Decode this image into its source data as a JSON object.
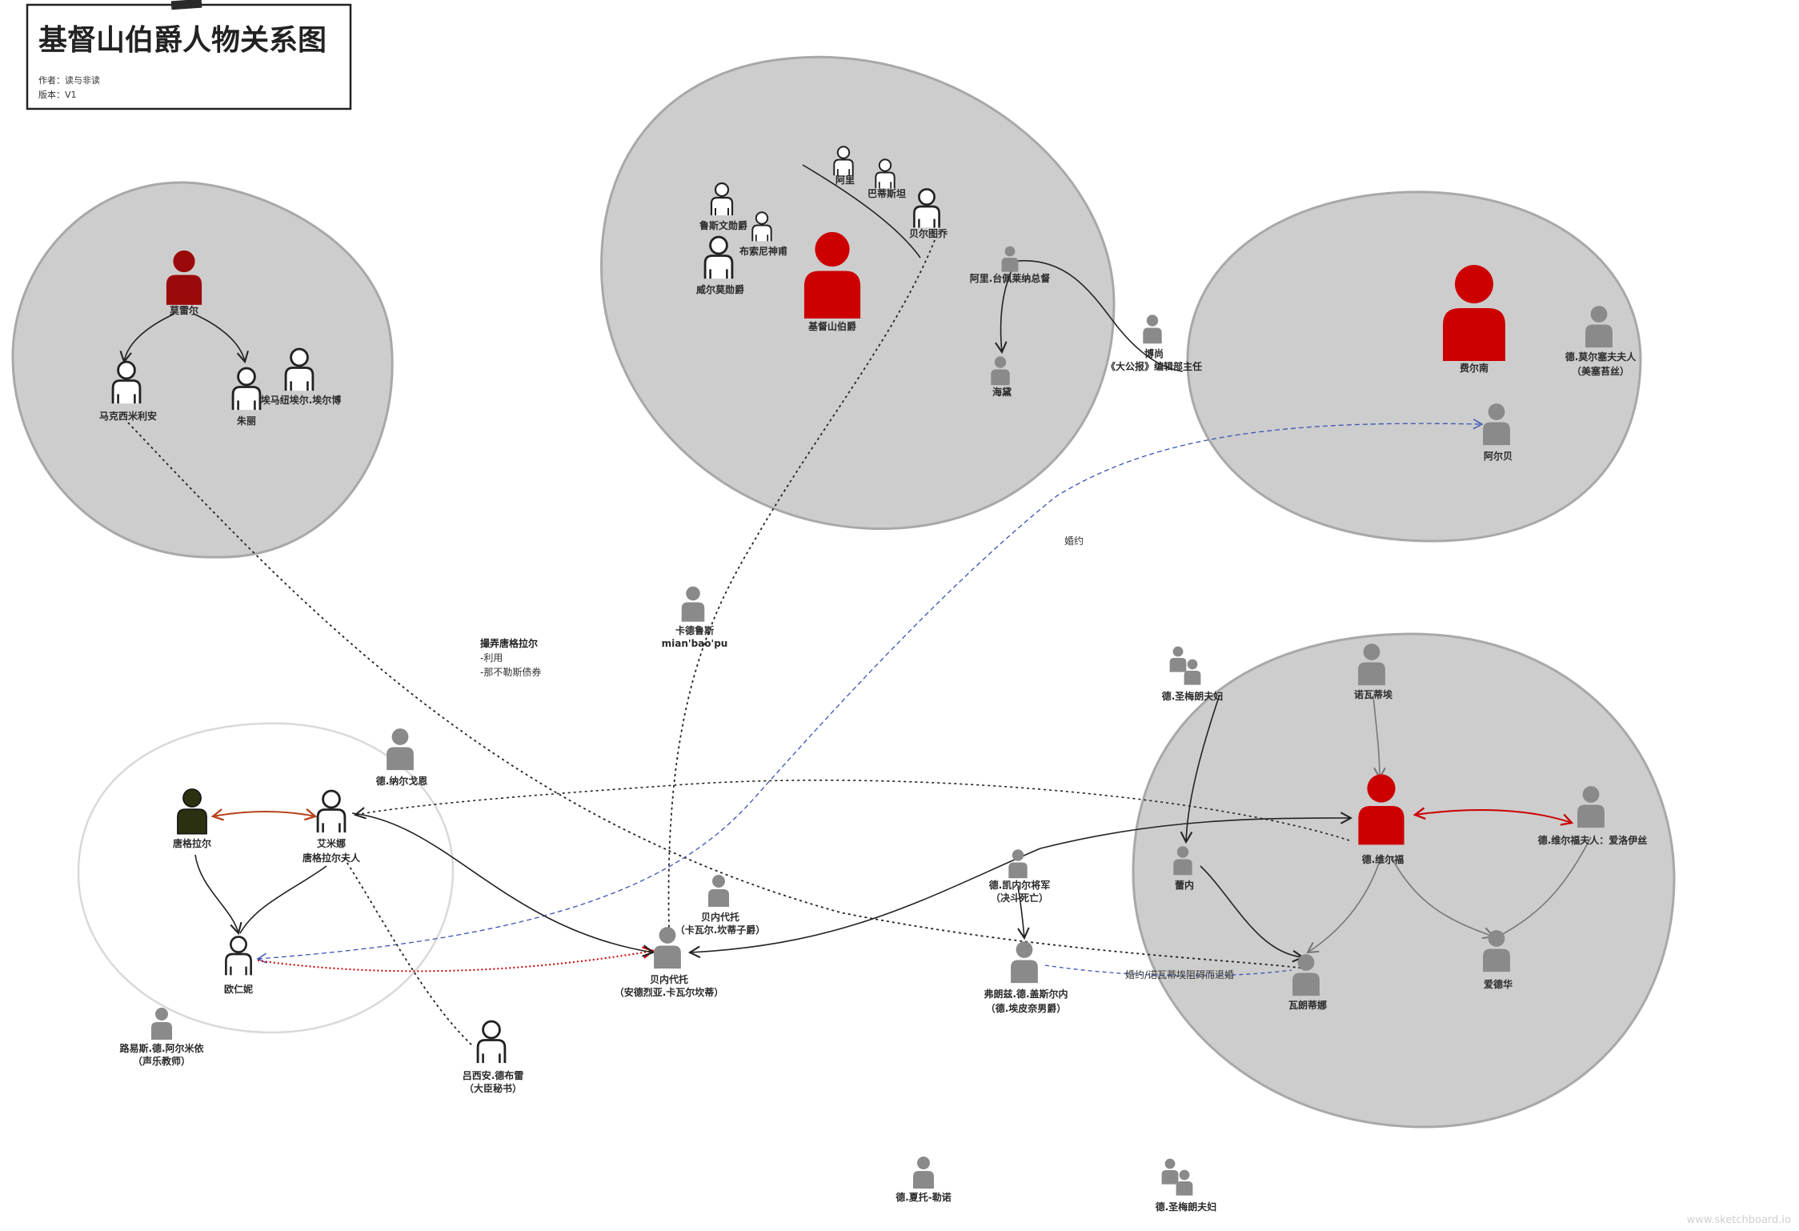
{
  "header": {
    "title": "基督山伯爵人物关系图",
    "author": "作者：读与非读",
    "version": "版本：V1"
  },
  "people": {
    "moreier": "莫雷尔",
    "maximilien": "马克西米利安",
    "julie": "朱丽",
    "emmanuel": "埃马纽埃尔.埃尔博",
    "ali": "阿里",
    "bertuccio": "巴蒂斯坦",
    "lord_wilmore": "鲁斯文勋爵",
    "busoni": "布索尼神甫",
    "wilmore": "威尔莫勋爵",
    "monte_cristo": "基督山伯爵",
    "bertuccio2": "贝尔图乔",
    "ali_tebelin": "阿里.台佩莱纳总督",
    "haydee": "海黛",
    "beauchamp_name": "博尚",
    "beauchamp_role": "《大公报》编辑部主任",
    "fernand": "费尔南",
    "mme_morcerf_1": "德.莫尔塞夫夫人",
    "mme_morcerf_2": "（美塞苔丝）",
    "albert": "阿尔贝",
    "caderousse_1": "卡德鲁斯",
    "caderousse_2": "mian'bao'pu",
    "saint_meran_top": "德.圣梅朗夫妇",
    "noirtier": "诺瓦蒂埃",
    "villefort": "德.维尔福",
    "mme_villefort": "德.维尔福夫人：爱洛伊丝",
    "renee": "蕾内",
    "quesnel_1": "德.凯内尔将军",
    "quesnel_2": "（决斗死亡）",
    "edouard": "爱德华",
    "valentine": "瓦朗蒂娜",
    "franz_1": "弗朗兹.德.盖斯尔内",
    "franz_2": "（德.埃皮奈男爵）",
    "danglars": "唐格拉尔",
    "hermine_1": "艾米娜",
    "hermine_2": "唐格拉尔夫人",
    "debray_nargonne": "德.纳尔戈恩",
    "eugenie": "欧仁妮",
    "louise": "路易斯.德.阿尔米依",
    "louise_2": "（声乐教师）",
    "debray_1": "吕西安.德布雷",
    "debray_2": "（大臣秘书）",
    "cav_bottom_1": "贝内代托",
    "cav_bottom_2": "（安德烈亚.卡瓦尔坎蒂）",
    "cav_top_1": "贝内代托",
    "cav_top_2": "（卡瓦尔.坎蒂子爵）",
    "de_chateau": "德.夏托-勒诺",
    "saint_meran_bottom": "德.圣梅朗夫妇"
  },
  "notes": {
    "engagement": "婚约",
    "villefort_note_title": "撮弄唐格拉尔",
    "villefort_note_1": "-利用",
    "villefort_note_2": "-那不勒斯债券",
    "franz_note": "婚约/诺瓦蒂埃阻碍而退婚"
  },
  "watermark": "www.sketchboard.io",
  "colors": {
    "red": "#cc0000",
    "dark_red": "#9b0a0a",
    "gray": "#8a8a8a",
    "group_fill": "#cdcdcd",
    "olive": "#2b3010",
    "blue": "#3b53b4"
  }
}
